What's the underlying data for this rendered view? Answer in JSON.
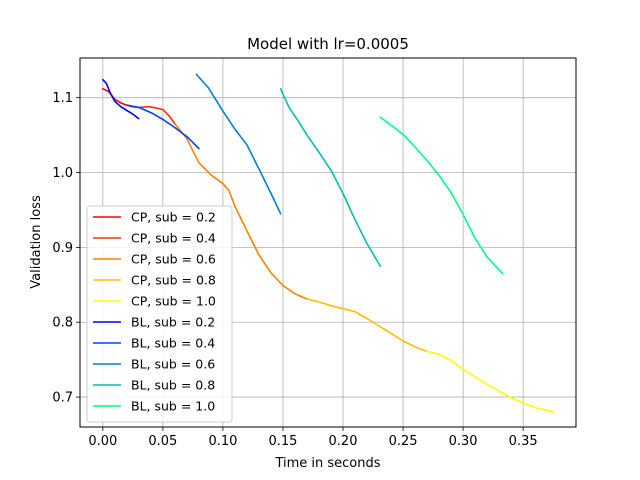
{
  "chart_data": {
    "type": "line",
    "title": "Model with lr=0.0005",
    "xlabel": "Time in seconds",
    "ylabel": "Validation loss",
    "xlim": [
      -0.019,
      0.394
    ],
    "ylim": [
      0.66,
      1.153
    ],
    "xticks": [
      0.0,
      0.05,
      0.1,
      0.15,
      0.2,
      0.25,
      0.3,
      0.35
    ],
    "xtick_labels": [
      "0.00",
      "0.05",
      "0.10",
      "0.15",
      "0.20",
      "0.25",
      "0.30",
      "0.35"
    ],
    "yticks": [
      0.7,
      0.8,
      0.9,
      1.0,
      1.1
    ],
    "ytick_labels": [
      "0.7",
      "0.8",
      "0.9",
      "1.0",
      "1.1"
    ],
    "grid": true,
    "legend_position": "lower-left",
    "series": [
      {
        "name": "CP, sub = 0.2",
        "color": "#ff0000",
        "x": [
          0.0,
          0.005,
          0.01,
          0.015,
          0.02,
          0.025,
          0.03
        ],
        "y": [
          1.112,
          1.108,
          1.098,
          1.093,
          1.09,
          1.088,
          1.087
        ]
      },
      {
        "name": "CP, sub = 0.4",
        "color": "#ff3300",
        "x": [
          0.03,
          0.038,
          0.045,
          0.05,
          0.055,
          0.06
        ],
        "y": [
          1.087,
          1.088,
          1.086,
          1.084,
          1.076,
          1.065
        ]
      },
      {
        "name": "CP, sub = 0.6",
        "color": "#ff8000",
        "x": [
          0.06,
          0.07,
          0.08,
          0.09,
          0.1,
          0.105,
          0.11,
          0.12,
          0.13,
          0.14,
          0.15,
          0.16,
          0.17
        ],
        "y": [
          1.065,
          1.045,
          1.013,
          0.997,
          0.985,
          0.976,
          0.955,
          0.922,
          0.89,
          0.866,
          0.849,
          0.838,
          0.831
        ]
      },
      {
        "name": "CP, sub = 0.8",
        "color": "#ffbf00",
        "x": [
          0.17,
          0.18,
          0.19,
          0.2,
          0.21,
          0.22,
          0.23,
          0.24,
          0.25,
          0.26,
          0.27
        ],
        "y": [
          0.831,
          0.827,
          0.822,
          0.818,
          0.814,
          0.805,
          0.795,
          0.785,
          0.775,
          0.767,
          0.761
        ]
      },
      {
        "name": "CP, sub = 1.0",
        "color": "#ffff00",
        "x": [
          0.27,
          0.28,
          0.29,
          0.3,
          0.31,
          0.32,
          0.33,
          0.34,
          0.35,
          0.36,
          0.375
        ],
        "y": [
          0.761,
          0.757,
          0.749,
          0.737,
          0.727,
          0.717,
          0.708,
          0.699,
          0.692,
          0.686,
          0.68
        ]
      },
      {
        "name": "BL, sub = 0.2",
        "color": "#0000ff",
        "x": [
          0.0,
          0.003,
          0.006,
          0.01,
          0.015,
          0.02,
          0.025,
          0.03
        ],
        "y": [
          1.124,
          1.119,
          1.107,
          1.095,
          1.088,
          1.083,
          1.078,
          1.072
        ]
      },
      {
        "name": "BL, sub = 0.4",
        "color": "#0040ff",
        "x": [
          0.02,
          0.03,
          0.04,
          0.05,
          0.06,
          0.07,
          0.08
        ],
        "y": [
          1.09,
          1.087,
          1.08,
          1.071,
          1.06,
          1.048,
          1.032
        ]
      },
      {
        "name": "BL, sub = 0.6",
        "color": "#0080d0",
        "x": [
          0.078,
          0.088,
          0.095,
          0.1,
          0.11,
          0.12,
          0.13,
          0.14,
          0.148
        ],
        "y": [
          1.131,
          1.113,
          1.095,
          1.082,
          1.058,
          1.037,
          1.005,
          0.972,
          0.945
        ]
      },
      {
        "name": "BL, sub = 0.8",
        "color": "#00bfb0",
        "x": [
          0.148,
          0.155,
          0.163,
          0.17,
          0.18,
          0.19,
          0.2,
          0.21,
          0.22,
          0.231
        ],
        "y": [
          1.112,
          1.087,
          1.068,
          1.05,
          1.027,
          1.003,
          0.972,
          0.937,
          0.905,
          0.875
        ]
      },
      {
        "name": "BL, sub = 1.0",
        "color": "#00ff80",
        "x": [
          0.231,
          0.25,
          0.26,
          0.27,
          0.28,
          0.29,
          0.3,
          0.31,
          0.32,
          0.333
        ],
        "y": [
          1.074,
          1.051,
          1.034,
          1.016,
          0.996,
          0.973,
          0.944,
          0.912,
          0.887,
          0.865
        ]
      }
    ]
  }
}
